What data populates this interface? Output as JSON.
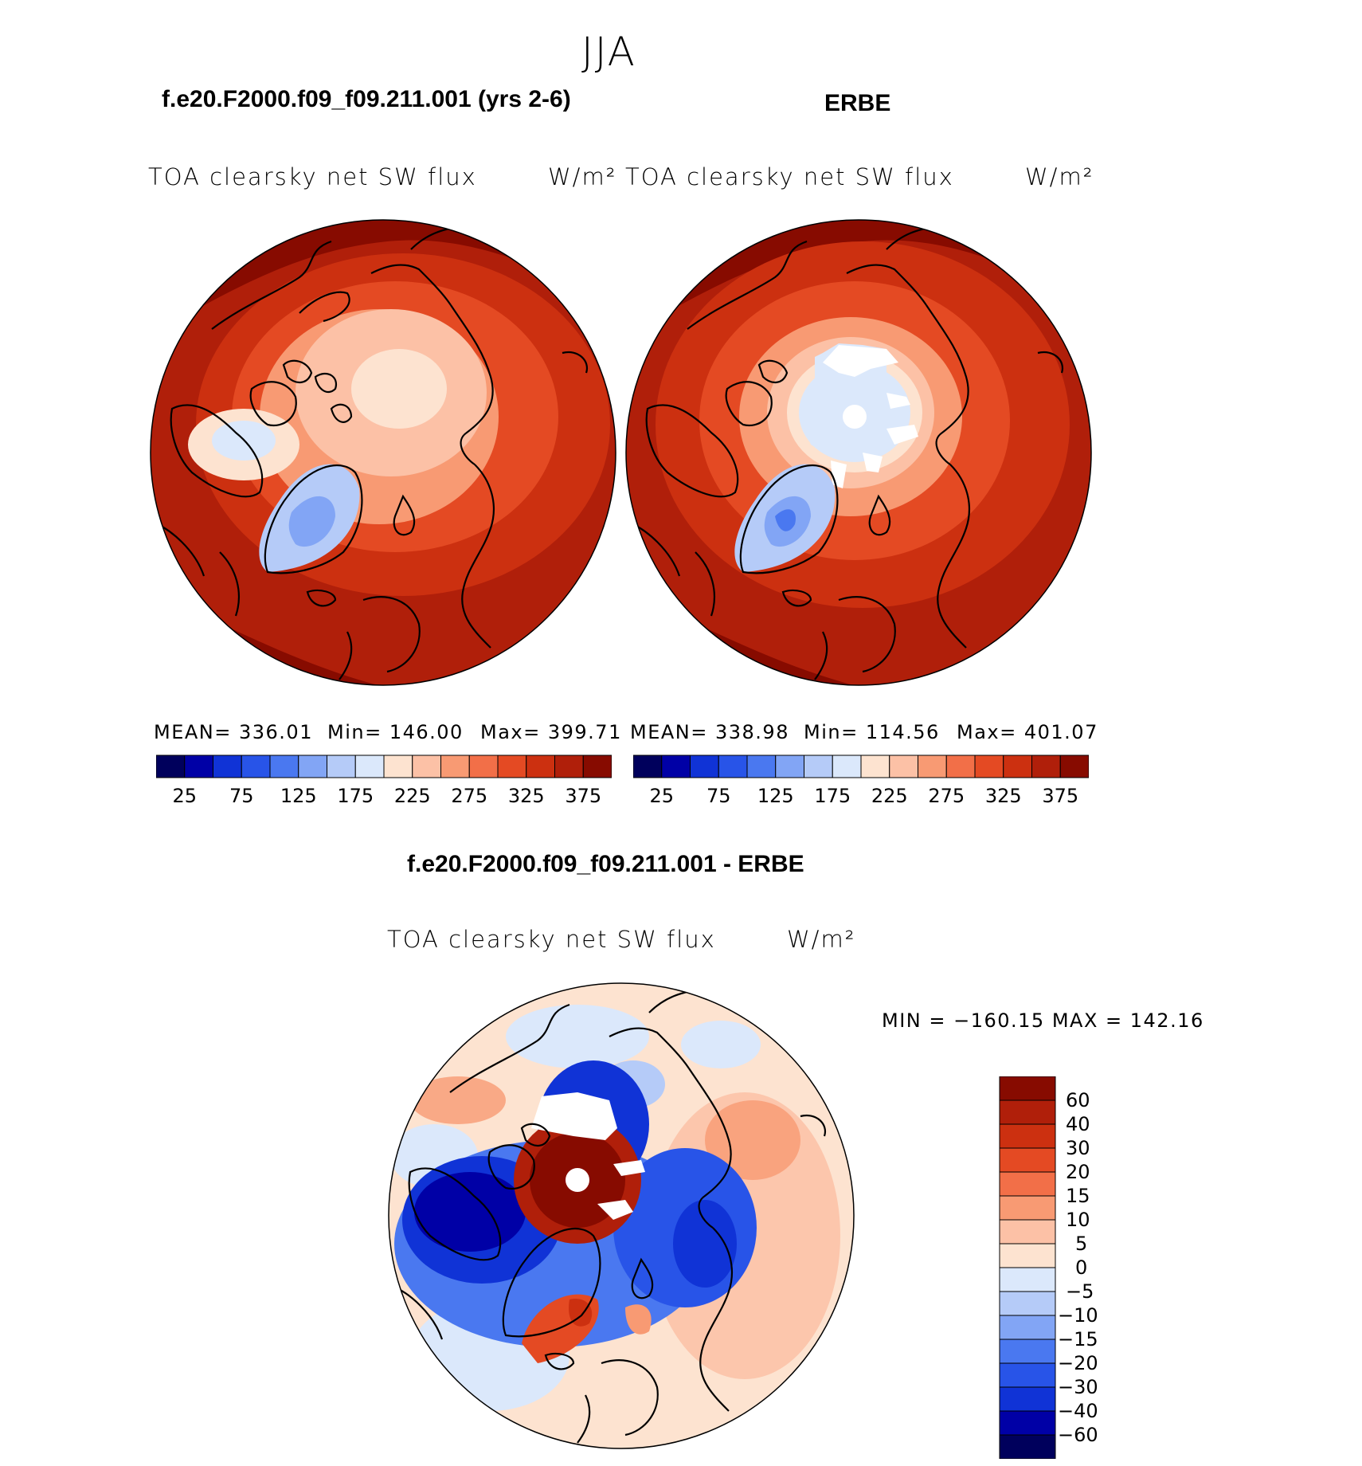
{
  "page_title": "JJA",
  "panels": {
    "model": {
      "case_title": "f.e20.F2000.f09_f09.211.001 (yrs 2-6)",
      "variable": "TOA clearsky net SW flux",
      "units": "W/m²",
      "stats": {
        "mean": "MEAN= 336.01",
        "min": "Min= 146.00",
        "max": "Max= 399.71"
      }
    },
    "obs": {
      "case_title": "ERBE",
      "variable": "TOA clearsky net SW flux",
      "units": "W/m²",
      "stats": {
        "mean": "MEAN= 338.98",
        "min": "Min= 114.56",
        "max": "Max= 401.07"
      }
    },
    "diff": {
      "case_title": "f.e20.F2000.f09_f09.211.001 - ERBE",
      "variable": "TOA clearsky net SW flux",
      "units": "W/m²",
      "stats": "MIN = −160.15 MAX = 142.16"
    }
  },
  "colorbars": {
    "abs_ticks": [
      "25",
      "75",
      "125",
      "175",
      "225",
      "275",
      "325",
      "375"
    ],
    "abs_colors": [
      "#00005c",
      "#0000a6",
      "#1033d6",
      "#2854e8",
      "#4a78f0",
      "#82a5f5",
      "#b5cbf8",
      "#dbe8fb",
      "#fde3d0",
      "#fcc1a6",
      "#f89a73",
      "#f26f48",
      "#e44a23",
      "#cc3010",
      "#b01f0a",
      "#870b00"
    ],
    "diff_labels": [
      "60",
      "40",
      "30",
      "20",
      "15",
      "10",
      "5",
      "0",
      "−5",
      "−10",
      "−15",
      "−20",
      "−30",
      "−40",
      "−60"
    ],
    "diff_colors": [
      "#870b00",
      "#b01f0a",
      "#cc3010",
      "#e44a23",
      "#f26f48",
      "#f89a73",
      "#fcc1a6",
      "#fde3d0",
      "#dbe8fb",
      "#b5cbf8",
      "#82a5f5",
      "#4a78f0",
      "#2854e8",
      "#1033d6",
      "#0000a6",
      "#00005c"
    ]
  },
  "map_colors": {
    "deep_red": "#870b00",
    "dark_red": "#b01f0a",
    "red": "#cc3010",
    "orange_red": "#e44a23",
    "salmon": "#f89a73",
    "light_salmon": "#fcc1a6",
    "pale": "#fde3d0",
    "pale_blue": "#dbe8fb",
    "light_blue": "#b5cbf8",
    "blue": "#4a78f0",
    "dark_blue": "#1033d6",
    "navy": "#0000a6"
  }
}
